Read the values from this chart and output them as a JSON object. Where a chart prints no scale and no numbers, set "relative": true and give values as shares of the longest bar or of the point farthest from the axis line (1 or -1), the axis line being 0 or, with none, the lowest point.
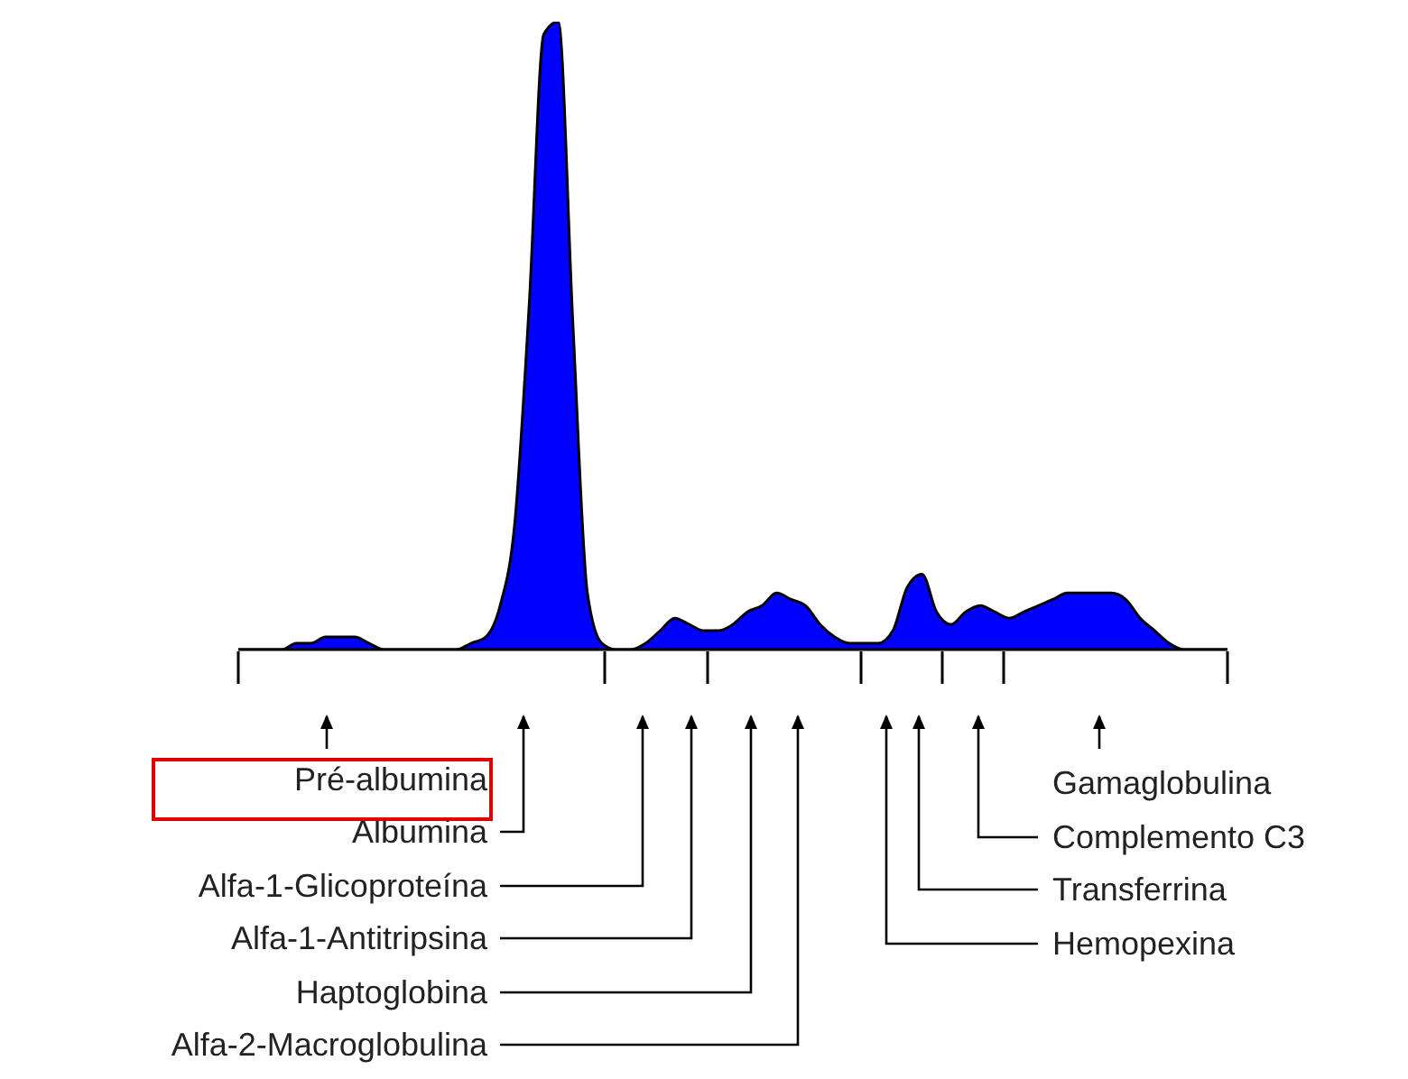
{
  "chart_data": {
    "type": "area",
    "relative": true,
    "color": "#0000ff",
    "categories": [
      null,
      null,
      null,
      null,
      null,
      null,
      null,
      null,
      null,
      null,
      null,
      null,
      null,
      null,
      null,
      null,
      null,
      null,
      null,
      null,
      null,
      null,
      null,
      null,
      null,
      null,
      null,
      null,
      null,
      null,
      null,
      null,
      null,
      null,
      null,
      null,
      null,
      null,
      null,
      null,
      null,
      null,
      null,
      null,
      null,
      null,
      null,
      null,
      null,
      null,
      null,
      null,
      null,
      null,
      null,
      null,
      null,
      null,
      null,
      null,
      null,
      null,
      null,
      null,
      null,
      null,
      null,
      null,
      null
    ],
    "values": [
      0,
      0,
      0,
      0,
      0.01,
      0.01,
      0.02,
      0.02,
      0.02,
      0.01,
      0,
      0,
      0,
      0,
      0,
      0,
      0.01,
      0.02,
      0.07,
      0.2,
      0.55,
      0.98,
      1,
      0.52,
      0.09,
      0.01,
      0,
      0,
      0.01,
      0.03,
      0.05,
      0.04,
      0.03,
      0.03,
      0.04,
      0.06,
      0.07,
      0.09,
      0.08,
      0.07,
      0.04,
      0.02,
      0.01,
      0.01,
      0.01,
      0.03,
      0.1,
      0.12,
      0.06,
      0.04,
      0.06,
      0.07,
      0.06,
      0.05,
      0.06,
      0.07,
      0.08,
      0.09,
      0.09,
      0.09,
      0.09,
      0.08,
      0.05,
      0.03,
      0.01,
      0,
      0,
      0,
      0
    ],
    "annotations": [
      "Pré-albumina",
      "Albumina",
      "Alfa-1-Glicoproteína",
      "Alfa-1-Antitripsina",
      "Haptoglobina",
      "Alfa-2-Macroglobulina",
      "Gamaglobulina",
      "Complemento C3",
      "Transferrina",
      "Hemopexina"
    ]
  }
}
